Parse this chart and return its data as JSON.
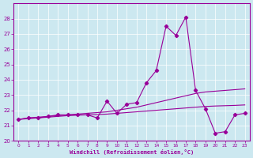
{
  "x": [
    0,
    1,
    2,
    3,
    4,
    5,
    6,
    7,
    8,
    9,
    10,
    11,
    12,
    13,
    14,
    15,
    16,
    17,
    18,
    19,
    20,
    21,
    22,
    23
  ],
  "y_main": [
    21.4,
    21.5,
    21.5,
    21.6,
    21.7,
    21.7,
    21.7,
    21.7,
    21.5,
    22.6,
    21.8,
    22.4,
    22.5,
    23.8,
    24.6,
    27.5,
    26.9,
    28.1,
    23.3,
    22.1,
    20.5,
    20.6,
    21.7,
    21.8
  ],
  "y_trend1": [
    21.4,
    21.45,
    21.5,
    21.55,
    21.6,
    21.65,
    21.68,
    21.7,
    21.72,
    21.75,
    21.8,
    21.85,
    21.9,
    21.95,
    22.0,
    22.05,
    22.1,
    22.15,
    22.2,
    22.25,
    22.28,
    22.3,
    22.32,
    22.35
  ],
  "y_trend2": [
    21.4,
    21.5,
    21.55,
    21.6,
    21.65,
    21.7,
    21.75,
    21.8,
    21.85,
    21.9,
    22.0,
    22.1,
    22.2,
    22.35,
    22.5,
    22.65,
    22.8,
    22.95,
    23.1,
    23.2,
    23.25,
    23.3,
    23.35,
    23.4
  ],
  "line_color": "#990099",
  "bg_color": "#cce8f0",
  "grid_color": "#b0d8e8",
  "xlabel": "Windchill (Refroidissement éolien,°C)",
  "ylim": [
    20,
    29
  ],
  "xlim": [
    -0.5,
    23.5
  ],
  "yticks": [
    20,
    21,
    22,
    23,
    24,
    25,
    26,
    27,
    28
  ],
  "xticks": [
    0,
    1,
    2,
    3,
    4,
    5,
    6,
    7,
    8,
    9,
    10,
    11,
    12,
    13,
    14,
    15,
    16,
    17,
    18,
    19,
    20,
    21,
    22,
    23
  ]
}
